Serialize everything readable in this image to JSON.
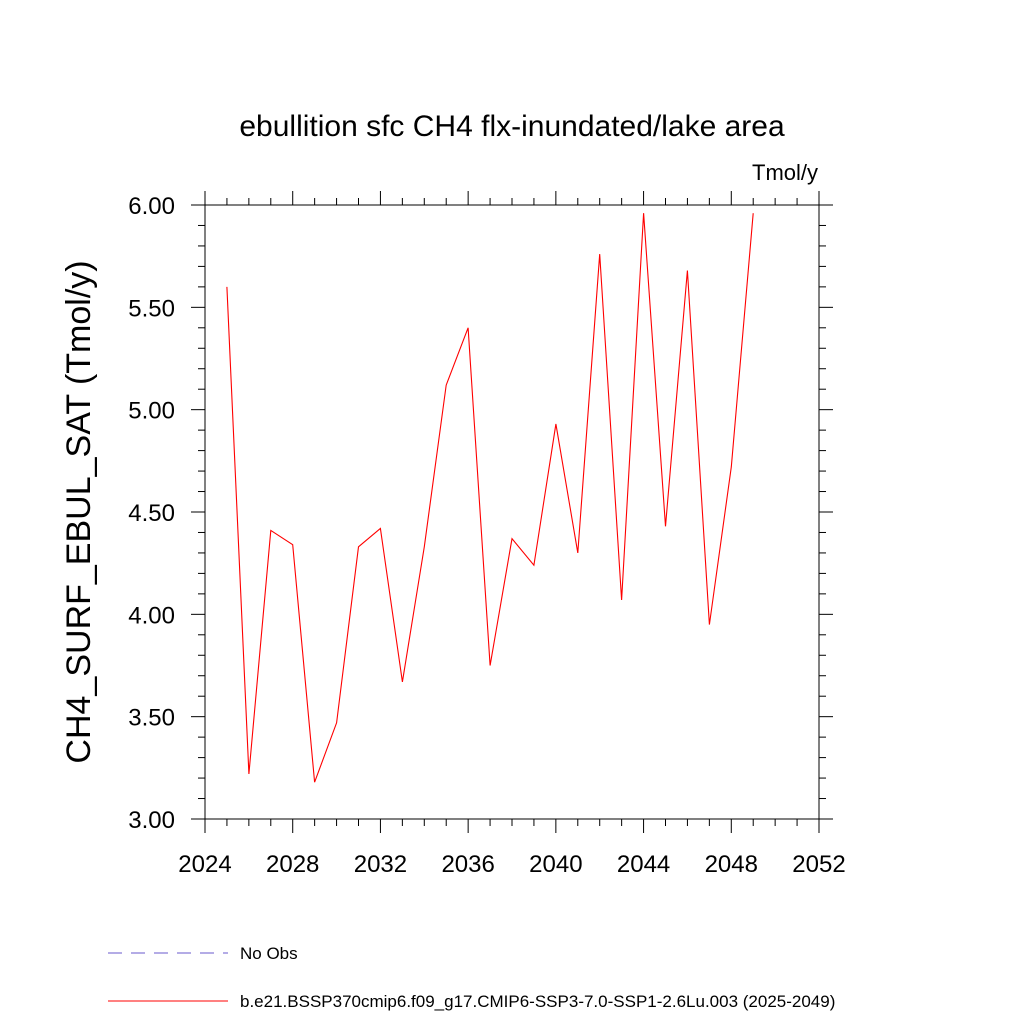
{
  "chart_data": {
    "type": "line",
    "title": "ebullition sfc CH4 flx-inundated/lake area",
    "units": "Tmol/y",
    "ylabel": "CH4_SURF_EBUL_SAT  (Tmol/y)",
    "xlabel": "",
    "xlim": [
      2024,
      2052
    ],
    "ylim": [
      3.0,
      6.0
    ],
    "xticks": [
      2024,
      2028,
      2032,
      2036,
      2040,
      2044,
      2048,
      2052
    ],
    "yticks": [
      3.0,
      3.5,
      4.0,
      4.5,
      5.0,
      5.5,
      6.0
    ],
    "ytick_labels": [
      "3.00",
      "3.50",
      "4.00",
      "4.50",
      "5.00",
      "5.50",
      "6.00"
    ],
    "grid": false,
    "series": [
      {
        "name": "No Obs",
        "color": "#6a5acd",
        "dash": "dashed",
        "x": [],
        "values": []
      },
      {
        "name": "b.e21.BSSP370cmip6.f09_g17.CMIP6-SSP3-7.0-SSP1-2.6Lu.003 (2025-2049)",
        "color": "#ff0000",
        "dash": "solid",
        "x": [
          2025,
          2026,
          2027,
          2028,
          2029,
          2030,
          2031,
          2032,
          2033,
          2034,
          2035,
          2036,
          2037,
          2038,
          2039,
          2040,
          2041,
          2042,
          2043,
          2044,
          2045,
          2046,
          2047,
          2048,
          2049
        ],
        "values": [
          5.6,
          3.22,
          4.41,
          4.34,
          3.18,
          3.47,
          4.33,
          4.42,
          3.67,
          4.33,
          5.12,
          5.4,
          3.75,
          4.37,
          4.24,
          4.93,
          4.3,
          5.76,
          4.07,
          5.96,
          4.43,
          5.68,
          3.95,
          4.72,
          5.96
        ]
      }
    ],
    "legend_position": "bottom"
  }
}
